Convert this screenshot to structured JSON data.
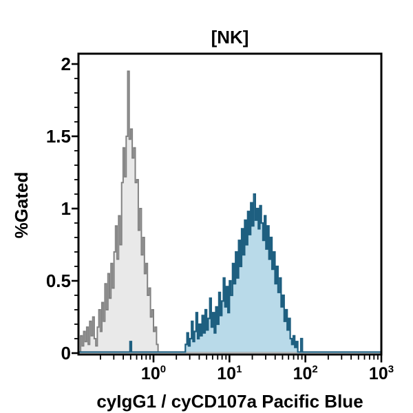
{
  "window": {
    "background": "#ffffff"
  },
  "chart_data": {
    "type": "area",
    "chart_kind": "flow-cytometry-histogram-overlay",
    "title": "[NK]",
    "xlabel": "cyIgG1 / cyCD107a Pacific Blue",
    "ylabel": "%Gated",
    "x_scale": "log10",
    "grid": false,
    "legend": "none",
    "x_axis": {
      "min_log": -0.988,
      "max_log": 3,
      "major_tick_logs": [
        0,
        1,
        2,
        3
      ],
      "major_tick_base": "10",
      "major_tick_exponents": [
        "0",
        "1",
        "2",
        "3"
      ],
      "minor_ticks": "log decades 2-9"
    },
    "y_axis": {
      "min": 0,
      "max": 2.07,
      "major_ticks": [
        0,
        0.5,
        1,
        1.5,
        2
      ],
      "major_tick_labels": [
        "0",
        "0.5",
        "1",
        "1.5",
        "2"
      ],
      "minor_tick_step": 0.1
    },
    "series": [
      {
        "name": "gray_histogram_control",
        "line_color": "#818181",
        "fill_color": "#e9e9e9",
        "line_width": 2,
        "bin_width_log": 0.02,
        "peak": {
          "x_log": -0.34,
          "y": 1.95
        },
        "segments": [
          {
            "start_log": -0.96,
            "values": [
              0.12,
              0.05,
              0.15,
              0.08,
              0.18,
              0.06,
              0.22,
              0.12,
              0.25,
              0.1,
              0.05,
              0.18,
              0.3,
              0.15,
              0.35,
              0.22,
              0.48,
              0.3,
              0.55,
              0.38,
              0.62,
              0.45,
              0.7,
              0.88,
              0.65,
              0.95,
              0.75,
              1.18,
              1.42,
              1.22,
              1.5,
              1.95,
              1.48,
              1.55,
              1.35,
              1.42,
              1.18,
              1.2,
              0.85,
              1.0,
              0.68,
              0.8,
              0.55,
              0.62,
              0.4,
              0.45,
              0.25,
              0.3,
              0.15,
              0.18,
              0.06
            ]
          }
        ]
      },
      {
        "name": "blue_histogram_stained",
        "line_color": "#1e5f80",
        "fill_color": "#b9dae9",
        "line_width": 2.2,
        "bin_width_log": 0.02,
        "peak": {
          "x_log": 1.32,
          "y": 1.1
        },
        "segments": [
          {
            "start_log": -0.31,
            "values": [
              0.08
            ]
          },
          {
            "start_log": 0.42,
            "values": [
              0.06,
              0.14,
              0.05,
              0.1,
              0.22,
              0.08,
              0.15,
              0.28,
              0.1,
              0.2,
              0.12,
              0.26,
              0.14,
              0.3,
              0.16,
              0.24,
              0.38,
              0.18,
              0.28,
              0.14,
              0.32,
              0.2,
              0.42,
              0.26,
              0.36,
              0.52,
              0.32,
              0.46,
              0.28,
              0.5,
              0.4,
              0.62,
              0.48,
              0.7,
              0.52,
              0.78,
              0.6,
              0.86,
              0.68,
              0.92,
              0.75,
              0.98,
              0.82,
              1.04,
              0.88,
              1.1,
              0.92,
              1.0,
              0.86,
              1.02,
              0.9,
              0.78,
              0.95,
              0.72,
              0.88,
              0.65,
              0.8,
              0.58,
              0.7,
              0.48,
              0.6,
              0.42,
              0.52,
              0.32,
              0.4,
              0.22,
              0.3,
              0.16,
              0.24,
              0.1,
              0.06,
              0.12,
              0.04,
              0.08
            ]
          },
          {
            "start_log": 1.94,
            "values": [
              0.1
            ]
          }
        ]
      }
    ],
    "frame_color": "#000000"
  }
}
